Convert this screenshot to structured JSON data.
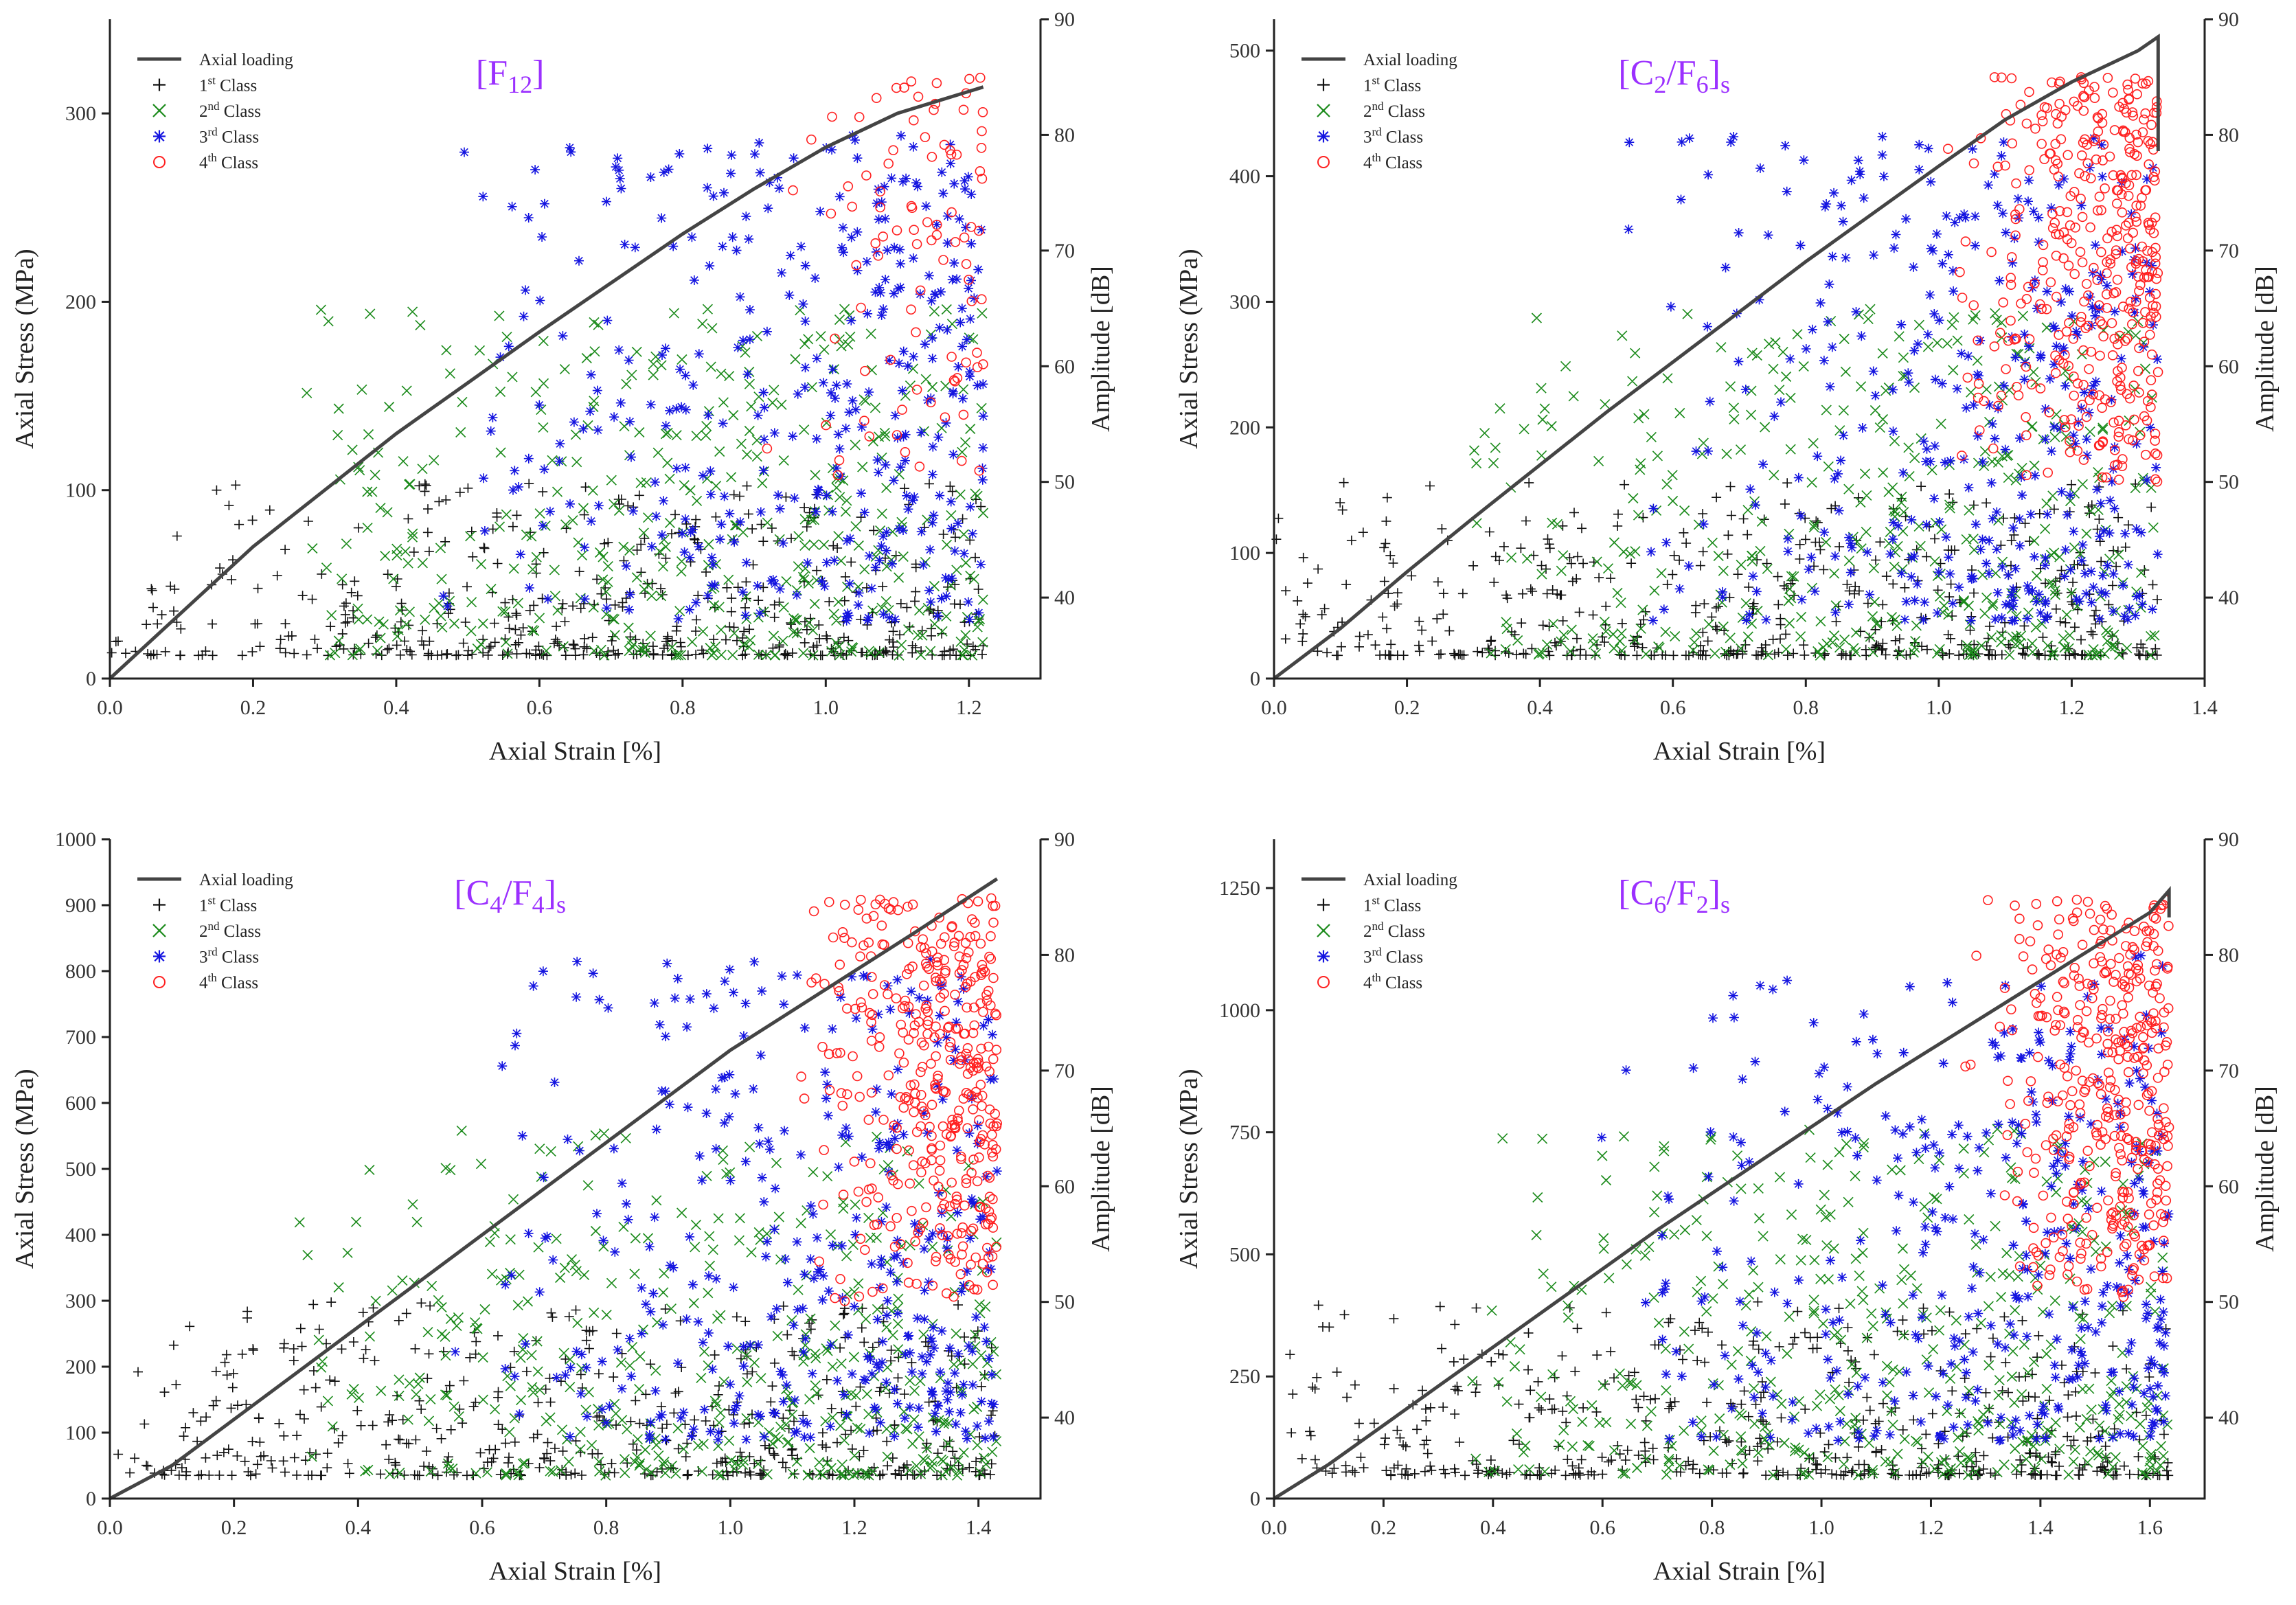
{
  "colors": {
    "axial_loading": "#444444",
    "class1": "#111111",
    "class2": "#1a8a1a",
    "class3": "#1414e0",
    "class4": "#ff2020",
    "title": "#9b30ff"
  },
  "legend": {
    "axial_loading": "Axial loading",
    "class1": "1st Class",
    "class2": "2nd Class",
    "class3": "3rd Class",
    "class4": "4th Class"
  },
  "chart_data": [
    {
      "type": "scatter",
      "title": "[F12]",
      "title_main": "F",
      "title_sub": "12",
      "title_suffix": "",
      "xlabel": "Axial Strain [%]",
      "ylabel": "Axial Stress (MPa)",
      "y2label": "Amplitude [dB]",
      "xlim": [
        0.0,
        1.3
      ],
      "ylim": [
        0,
        350
      ],
      "y2lim": [
        33,
        90
      ],
      "xticks": [
        "0.0",
        "0.2",
        "0.4",
        "0.6",
        "0.8",
        "1.0",
        "1.2"
      ],
      "xtick_values": [
        0.0,
        0.2,
        0.4,
        0.6,
        0.8,
        1.0,
        1.2
      ],
      "yticks": [
        "0",
        "100",
        "200",
        "300"
      ],
      "ytick_values": [
        0,
        100,
        200,
        300
      ],
      "y2ticks": [
        "40",
        "50",
        "60",
        "70",
        "80",
        "90"
      ],
      "y2tick_values": [
        40,
        50,
        60,
        70,
        80,
        90
      ],
      "loading_curve": [
        [
          0,
          0
        ],
        [
          0.1,
          35
        ],
        [
          0.2,
          70
        ],
        [
          0.3,
          100
        ],
        [
          0.4,
          130
        ],
        [
          0.5,
          157
        ],
        [
          0.6,
          184
        ],
        [
          0.7,
          210
        ],
        [
          0.8,
          236
        ],
        [
          0.9,
          260
        ],
        [
          1.0,
          282
        ],
        [
          1.1,
          300
        ],
        [
          1.22,
          314
        ]
      ],
      "scatter_max_strain": 1.22,
      "seed": 11
    },
    {
      "type": "scatter",
      "title": "[C2/F6]s",
      "title_main": "C",
      "title_sub": "2",
      "title_suffix": "/F6]s",
      "xlabel": "Axial Strain [%]",
      "ylabel": "Axial Stress (MPa)",
      "y2label": "Amplitude [dB]",
      "xlim": [
        0.0,
        1.4
      ],
      "ylim": [
        0,
        525
      ],
      "y2lim": [
        33,
        90
      ],
      "xticks": [
        "0.0",
        "0.2",
        "0.4",
        "0.6",
        "0.8",
        "1.0",
        "1.2",
        "1.4"
      ],
      "xtick_values": [
        0.0,
        0.2,
        0.4,
        0.6,
        0.8,
        1.0,
        1.2,
        1.4
      ],
      "yticks": [
        "0",
        "100",
        "200",
        "300",
        "400",
        "500"
      ],
      "ytick_values": [
        0,
        100,
        200,
        300,
        400,
        500
      ],
      "y2ticks": [
        "40",
        "50",
        "60",
        "70",
        "80",
        "90"
      ],
      "y2tick_values": [
        40,
        50,
        60,
        70,
        80,
        90
      ],
      "loading_curve": [
        [
          0,
          0
        ],
        [
          0.1,
          40
        ],
        [
          0.2,
          85
        ],
        [
          0.3,
          128
        ],
        [
          0.4,
          170
        ],
        [
          0.5,
          212
        ],
        [
          0.6,
          252
        ],
        [
          0.7,
          292
        ],
        [
          0.8,
          332
        ],
        [
          0.9,
          370
        ],
        [
          1.0,
          408
        ],
        [
          1.1,
          445
        ],
        [
          1.2,
          475
        ],
        [
          1.3,
          500
        ],
        [
          1.33,
          511
        ],
        [
          1.33,
          420
        ]
      ],
      "scatter_max_strain": 1.33,
      "seed": 23
    },
    {
      "type": "scatter",
      "title": "[C4/F4]s",
      "title_main": "C",
      "title_sub": "4",
      "title_suffix": "/F4]s",
      "xlabel": "Axial Strain [%]",
      "ylabel": "Axial Stress (MPa)",
      "y2label": "Amplitude [dB]",
      "xlim": [
        0.0,
        1.5
      ],
      "ylim": [
        0,
        1000
      ],
      "y2lim": [
        33,
        90
      ],
      "xticks": [
        "0.0",
        "0.2",
        "0.4",
        "0.6",
        "0.8",
        "1.0",
        "1.2",
        "1.4"
      ],
      "xtick_values": [
        0.0,
        0.2,
        0.4,
        0.6,
        0.8,
        1.0,
        1.2,
        1.4
      ],
      "yticks": [
        "0",
        "100",
        "200",
        "300",
        "400",
        "500",
        "600",
        "700",
        "800",
        "900",
        "1000"
      ],
      "ytick_values": [
        0,
        100,
        200,
        300,
        400,
        500,
        600,
        700,
        800,
        900,
        1000
      ],
      "y2ticks": [
        "40",
        "50",
        "60",
        "70",
        "80",
        "90"
      ],
      "y2tick_values": [
        40,
        50,
        60,
        70,
        80,
        90
      ],
      "loading_curve": [
        [
          0,
          0
        ],
        [
          0.1,
          50
        ],
        [
          0.2,
          120
        ],
        [
          0.3,
          190
        ],
        [
          0.4,
          260
        ],
        [
          0.5,
          330
        ],
        [
          0.6,
          400
        ],
        [
          0.7,
          470
        ],
        [
          0.8,
          540
        ],
        [
          0.9,
          610
        ],
        [
          1.0,
          680
        ],
        [
          1.1,
          740
        ],
        [
          1.2,
          800
        ],
        [
          1.3,
          860
        ],
        [
          1.43,
          940
        ]
      ],
      "scatter_max_strain": 1.43,
      "seed": 37
    },
    {
      "type": "scatter",
      "title": "[C6/F2]s",
      "title_main": "C",
      "title_sub": "6",
      "title_suffix": "/F2]s",
      "xlabel": "Axial Strain [%]",
      "ylabel": "Axial Stress (MPa)",
      "y2label": "Amplitude [dB]",
      "xlim": [
        0.0,
        1.7
      ],
      "ylim": [
        0,
        1350
      ],
      "y2lim": [
        33,
        90
      ],
      "xticks": [
        "0.0",
        "0.2",
        "0.4",
        "0.6",
        "0.8",
        "1.0",
        "1.2",
        "1.4",
        "1.6"
      ],
      "xtick_values": [
        0.0,
        0.2,
        0.4,
        0.6,
        0.8,
        1.0,
        1.2,
        1.4,
        1.6
      ],
      "yticks": [
        "0",
        "250",
        "500",
        "750",
        "1000",
        "1250"
      ],
      "ytick_values": [
        0,
        250,
        500,
        750,
        1000,
        1250
      ],
      "y2ticks": [
        "40",
        "50",
        "60",
        "70",
        "80",
        "90"
      ],
      "y2tick_values": [
        40,
        50,
        60,
        70,
        80,
        90
      ],
      "loading_curve": [
        [
          0,
          0
        ],
        [
          0.1,
          70
        ],
        [
          0.2,
          150
        ],
        [
          0.3,
          230
        ],
        [
          0.4,
          310
        ],
        [
          0.5,
          390
        ],
        [
          0.6,
          470
        ],
        [
          0.7,
          550
        ],
        [
          0.8,
          625
        ],
        [
          0.9,
          700
        ],
        [
          1.0,
          775
        ],
        [
          1.1,
          850
        ],
        [
          1.2,
          920
        ],
        [
          1.3,
          990
        ],
        [
          1.4,
          1060
        ],
        [
          1.5,
          1130
        ],
        [
          1.6,
          1200
        ],
        [
          1.635,
          1245
        ],
        [
          1.635,
          1190
        ]
      ],
      "scatter_max_strain": 1.635,
      "seed": 53
    }
  ]
}
